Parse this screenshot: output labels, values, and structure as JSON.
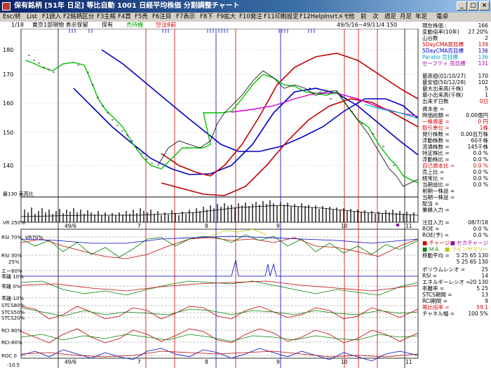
{
  "window": {
    "title": "保有銘柄 [51年 日足] 等比自動  1001 日経平均株価 分割調整チャート",
    "buttons": [
      "_",
      "□",
      "×"
    ]
  },
  "menu": [
    "Esc/終",
    "List",
    "F1読入",
    "F2銘柄区分",
    "F3主帳",
    "F4買",
    "F5売",
    "F6注目",
    "F7表示",
    "F8下",
    "F9拡大",
    "F10発注",
    "F11印刷設定",
    "F12Help",
    "Insrtメモ",
    "他",
    "前",
    "次",
    "週足",
    "月足",
    "年足",
    "電卓"
  ],
  "infobar": {
    "page": "1/18",
    "market": "東京1部現物 表示保留",
    "flag1": "保有",
    "flag2": "売待機",
    "flag3": "空注8前",
    "period": "49/5/16~49/11/4 150"
  },
  "price_axis": [
    "180",
    "170",
    "160",
    "150",
    "140"
  ],
  "price_min_label": "最130 表高比",
  "volume_label": "VR 250%",
  "date_labels": [
    "49/6",
    "7",
    "8",
    "9",
    "10",
    "11"
  ],
  "panels": [
    {
      "label": "RSI 70%",
      "label2": "VR70%"
    },
    {
      "label": "RSI 30%"
    },
    {
      "label": "エー60%"
    },
    {
      "label": "乖離 10%"
    },
    {
      "label": "乖離 0%"
    },
    {
      "label": "乖離-10%"
    },
    {
      "label": "STCS80%"
    },
    {
      "label": "STCS50%"
    },
    {
      "label": "STCS20%"
    },
    {
      "label": "RCI 80%"
    },
    {
      "label": "RCI-80%"
    },
    {
      "label": "ROC 0"
    },
    {
      "label": "-10.5"
    }
  ],
  "pct25": "25%",
  "side": [
    {
      "k": "現在株価 :",
      "v": "166",
      "c": "#000"
    },
    {
      "k": "変動倍率(10年)",
      "v": "27.20%",
      "c": "#000"
    },
    {
      "k": "山谷数",
      "v": "2",
      "c": "#000"
    },
    {
      "k": "5DayCMA買目標",
      "v": "139",
      "c": "#d00000"
    },
    {
      "k": "5DayCMA売目標",
      "v": "136",
      "c": "#0000c0"
    },
    {
      "k": "Parabo 売目標",
      "v": "136",
      "c": "#00a0c0"
    },
    {
      "k": "セーフティ 売目標",
      "v": "131",
      "c": "#a000a0"
    },
    {
      "k": "",
      "v": "",
      "c": "#000"
    },
    {
      "k": "最高値(01/10/27)",
      "v": "170",
      "c": "#000"
    },
    {
      "k": "最安値(50/12/28)",
      "v": "102",
      "c": "#000"
    },
    {
      "k": "最大出来高(千株)",
      "v": "5",
      "c": "#000"
    },
    {
      "k": "最小出来高(千株)",
      "v": "1",
      "c": "#000"
    },
    {
      "k": "出来ず日数",
      "v": "0日",
      "c": "#d00000"
    },
    {
      "k": "資本金 =",
      "v": "",
      "c": "#000"
    },
    {
      "k": "時価総額 =",
      "v": "0.00億円",
      "c": "#000"
    },
    {
      "k": "一株資産 =",
      "v": "0 円",
      "c": "#d00000"
    },
    {
      "k": "取引単位 =",
      "v": "1株",
      "c": "#d00000"
    },
    {
      "k": "発行株数 =",
      "v": "0.00百万株",
      "c": "#000"
    },
    {
      "k": "浮動株数 =",
      "v": "60千株",
      "c": "#000"
    },
    {
      "k": "流通株数 =",
      "v": "145千株",
      "c": "#000"
    },
    {
      "k": "特定株比 =",
      "v": "0.0 %",
      "c": "#000"
    },
    {
      "k": "浮動株比 =",
      "v": "0.0 %",
      "c": "#000"
    },
    {
      "k": "自己資本比 =",
      "v": "0.0 %",
      "c": "#d00000"
    },
    {
      "k": "売上比 =",
      "v": "0.0 %",
      "c": "#000"
    },
    {
      "k": "経常比 =",
      "v": "0.0 %",
      "c": "#000"
    },
    {
      "k": "当期益比 =",
      "v": "0.0 %",
      "c": "#000"
    },
    {
      "k": "前期一株益 =",
      "v": "",
      "c": "#000"
    },
    {
      "k": "当期一株益 =",
      "v": "",
      "c": "#000"
    },
    {
      "k": "配当 =",
      "v": "",
      "c": "#000"
    },
    {
      "k": "業績入力 =",
      "v": "",
      "c": "#000"
    },
    {
      "k": "",
      "v": "",
      "c": "#000"
    },
    {
      "k": "注目入力 =",
      "v": "08/7/18",
      "c": "#000"
    },
    {
      "k": "ROE =",
      "v": "0.0 %",
      "c": "#000"
    },
    {
      "k": "ROE(予) =",
      "v": "0.0 %",
      "c": "#000"
    }
  ],
  "legend": [
    {
      "k": "■ チャージ",
      "v": "■ セカチャージ",
      "c": "#d00000",
      "c2": "#a000a0"
    },
    {
      "k": "■ ＭＡ",
      "v": "■ ラインサマリー",
      "c": "#008000",
      "c2": "#c0c000"
    },
    {
      "k": "移動平均 =",
      "v": "5 25 65 130",
      "c": "#000"
    },
    {
      "k": "",
      "v": "5 25 65 130",
      "c": "#000"
    },
    {
      "k": "ボリウムレシオ =",
      "v": "25",
      "c": "#000"
    },
    {
      "k": "RSI =",
      "v": "14",
      "c": "#000"
    },
    {
      "k": "エネルギーレシオ =",
      "v": "20 130",
      "c": "#000"
    },
    {
      "k": "乖離率 =",
      "v": "5 25",
      "c": "#000"
    },
    {
      "k": "STCS期間 =",
      "v": "13",
      "c": "#000"
    },
    {
      "k": "RCI期間 =",
      "v": "9",
      "c": "#000"
    },
    {
      "k": "等比倍率 =",
      "v": "59.1",
      "c": "#d00000"
    },
    {
      "k": "チャネル幅 =",
      "v": "100 5%",
      "c": "#000"
    }
  ],
  "colors": {
    "ma5": "#00c000",
    "ma25": "#c00000",
    "ma65": "#0000c0",
    "ma130": "#d000d0",
    "parabolic": "#00c0c0",
    "price": "#000000"
  }
}
